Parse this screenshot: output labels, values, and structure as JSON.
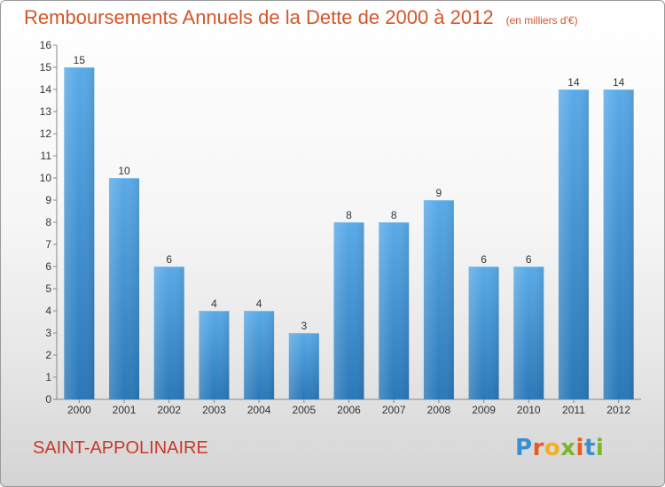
{
  "chart_data": {
    "type": "bar",
    "title": "Remboursements Annuels de la Dette de 2000 à 2012",
    "subtitle": "(en milliers d'€)",
    "categories": [
      "2000",
      "2001",
      "2002",
      "2003",
      "2004",
      "2005",
      "2006",
      "2007",
      "2008",
      "2009",
      "2010",
      "2011",
      "2012"
    ],
    "values": [
      15,
      10,
      6,
      4,
      4,
      3,
      8,
      8,
      9,
      6,
      6,
      14,
      14
    ],
    "ylim": [
      0,
      16
    ],
    "yticks": [
      "0",
      "1",
      "2",
      "3",
      "4",
      "5",
      "6",
      "7",
      "8",
      "9",
      "10",
      "11",
      "12",
      "13",
      "14",
      "15",
      "16"
    ],
    "grid": false,
    "bar_color": "#3f95d6"
  },
  "footer": {
    "commune": "SAINT-APPOLINAIRE",
    "logo": [
      {
        "char": "P",
        "color": "#3a8fd0"
      },
      {
        "char": "r",
        "color": "#e85a1e"
      },
      {
        "char": "o",
        "color": "#f2b01e"
      },
      {
        "char": "x",
        "color": "#7ab629"
      },
      {
        "char": "i",
        "color": "#e85a1e"
      },
      {
        "char": "t",
        "color": "#3a8fd0"
      },
      {
        "char": "i",
        "color": "#7ab629"
      }
    ]
  }
}
